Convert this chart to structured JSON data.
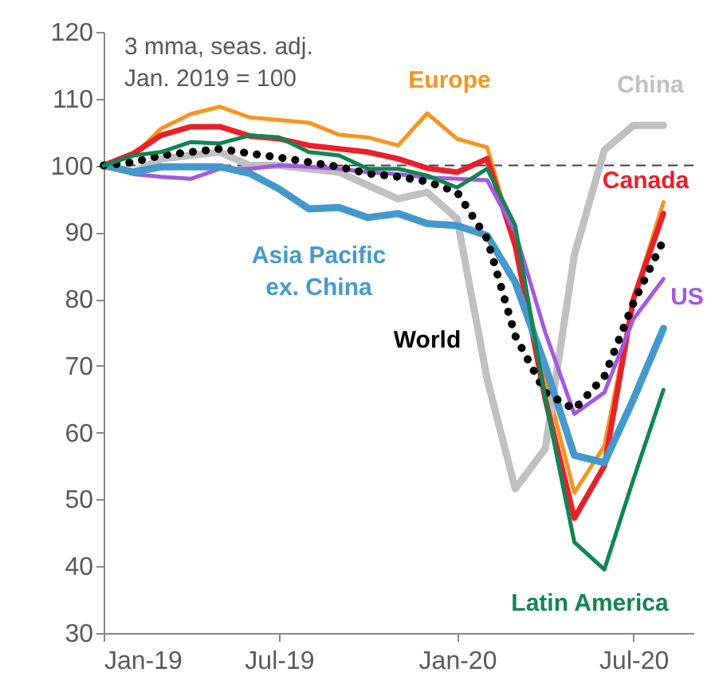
{
  "chart_data": {
    "type": "line",
    "annotations": [
      "3 mma, seas. adj.\nJan. 2019 = 100"
    ],
    "x": [
      "2019-01",
      "2019-02",
      "2019-03",
      "2019-04",
      "2019-05",
      "2019-06",
      "2019-07",
      "2019-08",
      "2019-09",
      "2019-10",
      "2019-11",
      "2019-12",
      "2020-01",
      "2020-02",
      "2020-03",
      "2020-04",
      "2020-05",
      "2020-06",
      "2020-07",
      "2020-08"
    ],
    "series": [
      {
        "name": "Europe",
        "color": "#f7941d",
        "values": [
          100,
          101.5,
          105.5,
          107.7,
          108.8,
          107.2,
          106.8,
          106.4,
          104.6,
          104.2,
          103,
          107.8,
          104,
          102.7,
          88,
          68,
          51,
          58,
          80,
          94.5
        ]
      },
      {
        "name": "China",
        "color": "#c0c0c0",
        "values": [
          100,
          99,
          101,
          101.5,
          102,
          100,
          100,
          99.5,
          99,
          97,
          95,
          96,
          92,
          68,
          51.6,
          57.6,
          86.6,
          102.3,
          106,
          106
        ]
      },
      {
        "name": "Canada",
        "color": "#e8202a",
        "values": [
          100,
          101.8,
          104.5,
          105.8,
          105.8,
          104.4,
          104,
          103,
          102.5,
          102,
          101,
          99.6,
          99,
          101,
          88,
          65,
          47.2,
          55,
          80,
          92.8
        ]
      },
      {
        "name": "US",
        "color": "#a259e0",
        "values": [
          100,
          98.7,
          98.3,
          98,
          99.5,
          99.5,
          100,
          99.8,
          99.5,
          99,
          98.7,
          98.2,
          98,
          97.8,
          90,
          75,
          62.8,
          66,
          77,
          83
        ]
      },
      {
        "name": "Asia Pacific ex. China",
        "color": "#4499cc",
        "values": [
          100,
          99,
          99.8,
          99.8,
          99.8,
          98.8,
          96.5,
          93.5,
          93.7,
          92.2,
          92.8,
          91.3,
          91,
          89.5,
          82.5,
          70,
          56.6,
          55.5,
          65,
          75.6
        ]
      },
      {
        "name": "World",
        "color": "#000000",
        "line_style": "dotted",
        "values": [
          100,
          100.5,
          101.5,
          102,
          102.5,
          101.8,
          101.2,
          100.5,
          99.8,
          98.8,
          98.3,
          97.6,
          96,
          89,
          74.5,
          66,
          63.5,
          68.4,
          79.4,
          88.8
        ]
      },
      {
        "name": "Latin America",
        "color": "#118452",
        "values": [
          100,
          101.5,
          102,
          103.5,
          103.3,
          104.5,
          104.2,
          102,
          101.5,
          99.5,
          99.5,
          98.5,
          96.7,
          99.5,
          91,
          65,
          43.6,
          39.5,
          53,
          66.4
        ]
      }
    ],
    "xlim": [
      "2019-01",
      "2020-09"
    ],
    "xticks": [
      {
        "value": "2019-01",
        "label": "Jan-19"
      },
      {
        "value": "2019-07",
        "label": "Jul-19"
      },
      {
        "value": "2020-01",
        "label": "Jan-20"
      },
      {
        "value": "2020-07",
        "label": "Jul-20"
      }
    ],
    "ylim": [
      30,
      120
    ],
    "yticks": [
      30,
      40,
      50,
      60,
      70,
      80,
      90,
      100,
      110,
      120
    ],
    "ref_lines": [
      {
        "axis": "y",
        "value": 100,
        "color": "#404040",
        "line_style": "dashed"
      }
    ],
    "grid": false,
    "marker": "none",
    "line_style": "solid"
  }
}
